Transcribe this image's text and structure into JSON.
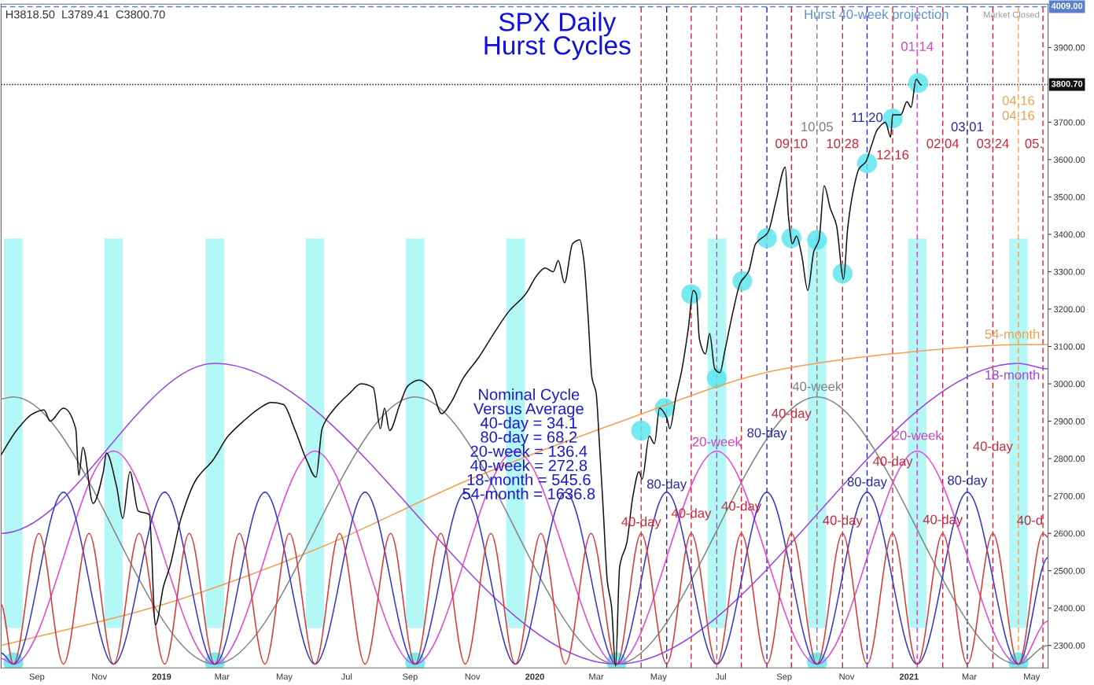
{
  "chart_data": {
    "type": "line",
    "title": "SPX Daily\nHurst Cycles",
    "xlim": [
      "2018-07-28",
      "2021-05-17"
    ],
    "ylim": [
      2240,
      4016
    ],
    "xticks": [
      {
        "value": "2018-09-01",
        "label": "Sep"
      },
      {
        "value": "2018-11-01",
        "label": "Nov"
      },
      {
        "value": "2019-01-01",
        "label": "2019"
      },
      {
        "value": "2019-03-01",
        "label": "Mar"
      },
      {
        "value": "2019-05-01",
        "label": "May"
      },
      {
        "value": "2019-07-01",
        "label": "Jul"
      },
      {
        "value": "2019-09-01",
        "label": "Sep"
      },
      {
        "value": "2019-11-01",
        "label": "Nov"
      },
      {
        "value": "2020-01-01",
        "label": "2020"
      },
      {
        "value": "2020-03-01",
        "label": "Mar"
      },
      {
        "value": "2020-05-01",
        "label": "May"
      },
      {
        "value": "2020-07-01",
        "label": "Jul"
      },
      {
        "value": "2020-09-01",
        "label": "Sep"
      },
      {
        "value": "2020-11-01",
        "label": "Nov"
      },
      {
        "value": "2021-01-01",
        "label": "2021"
      },
      {
        "value": "2021-03-01",
        "label": "Mar"
      },
      {
        "value": "2021-05-01",
        "label": "May"
      }
    ],
    "yticks": [
      {
        "value": 2300,
        "label": "2300.00"
      },
      {
        "value": 2400,
        "label": "2400.00"
      },
      {
        "value": 2500,
        "label": "2500.00"
      },
      {
        "value": 2600,
        "label": "2600.00"
      },
      {
        "value": 2700,
        "label": "2700.00"
      },
      {
        "value": 2800,
        "label": "2800.00"
      },
      {
        "value": 2900,
        "label": "2900.00"
      },
      {
        "value": 3000,
        "label": "3000.00"
      },
      {
        "value": 3100,
        "label": "3100.00"
      },
      {
        "value": 3200,
        "label": "3200.00"
      },
      {
        "value": 3300,
        "label": "3300.00"
      },
      {
        "value": 3400,
        "label": "3400.00"
      },
      {
        "value": 3500,
        "label": "3500.00"
      },
      {
        "value": 3600,
        "label": "3600.00"
      },
      {
        "value": 3700,
        "label": "3700.00"
      },
      {
        "value": 3900,
        "label": "3900.00"
      }
    ],
    "bands": [
      {
        "axis": "x",
        "from": "2018-07-31",
        "to": "2018-08-18",
        "color": "#b3f7f7"
      },
      {
        "axis": "x",
        "from": "2018-11-06",
        "to": "2018-11-24",
        "color": "#b3f7f7"
      },
      {
        "axis": "x",
        "from": "2019-02-13",
        "to": "2019-03-03",
        "color": "#b3f7f7"
      },
      {
        "axis": "x",
        "from": "2019-05-22",
        "to": "2019-06-09",
        "color": "#b3f7f7"
      },
      {
        "axis": "x",
        "from": "2019-08-28",
        "to": "2019-09-15",
        "color": "#b3f7f7"
      },
      {
        "axis": "x",
        "from": "2019-12-04",
        "to": "2019-12-22",
        "color": "#b3f7f7"
      },
      {
        "axis": "x",
        "from": "2020-06-18",
        "to": "2020-07-06",
        "color": "#b3f7f7"
      },
      {
        "axis": "x",
        "from": "2020-09-24",
        "to": "2020-10-12",
        "color": "#b3f7f7"
      },
      {
        "axis": "x",
        "from": "2020-12-31",
        "to": "2021-01-18",
        "color": "#b3f7f7"
      },
      {
        "axis": "x",
        "from": "2021-04-09",
        "to": "2021-04-27",
        "color": "#b3f7f7"
      }
    ],
    "series": [
      {
        "color": "#f0a050",
        "x": [
          "2018-07-28",
          "2018-12-28",
          "2019-05-30",
          "2019-10-30",
          "2020-03-16",
          "2020-08-31",
          "2021-01-01",
          "2021-04-18",
          "2021-05-17"
        ],
        "values": [
          2300,
          2405,
          2555,
          2745,
          2890,
          3040,
          3085,
          3105,
          3105
        ]
      },
      {
        "color": "#9b45e0",
        "x": [
          "2018-07-28",
          "2019-02-22",
          "2020-03-21",
          "2021-04-18",
          "2021-05-17"
        ],
        "values": [
          2600,
          3055,
          2250,
          3055,
          3040
        ]
      },
      {
        "color": "#858585",
        "x": [
          "2018-07-28",
          "2018-08-09",
          "2019-02-22",
          "2019-09-06",
          "2020-03-21",
          "2020-10-03",
          "2021-04-18",
          "2021-05-17"
        ],
        "values": [
          2960,
          2965,
          2250,
          2965,
          2250,
          2965,
          2250,
          2300
        ]
      },
      {
        "color": "#e845d8",
        "x": [
          "2018-07-28",
          "2018-08-09",
          "2018-11-15",
          "2019-02-22",
          "2019-05-31",
          "2019-09-06",
          "2019-12-13",
          "2020-03-21",
          "2020-06-27",
          "2020-10-03",
          "2021-01-09",
          "2021-04-18",
          "2021-05-17"
        ],
        "values": [
          2265,
          2250,
          2820,
          2250,
          2820,
          2250,
          2820,
          2250,
          2820,
          2250,
          2820,
          2250,
          2365
        ]
      },
      {
        "color": "#3535d0",
        "x": [
          "2018-07-28",
          "2018-08-09",
          "2018-09-27",
          "2018-11-15",
          "2019-01-04",
          "2019-02-22",
          "2019-04-12",
          "2019-05-31",
          "2019-07-19",
          "2019-09-06",
          "2019-10-25",
          "2019-12-13",
          "2020-01-31",
          "2020-03-21",
          "2020-05-09",
          "2020-06-27",
          "2020-08-15",
          "2020-10-03",
          "2020-11-21",
          "2021-01-09",
          "2021-02-27",
          "2021-04-18",
          "2021-05-17"
        ],
        "values": [
          2280,
          2250,
          2710,
          2250,
          2710,
          2250,
          2710,
          2250,
          2710,
          2250,
          2710,
          2250,
          2710,
          2250,
          2710,
          2250,
          2710,
          2250,
          2710,
          2250,
          2710,
          2250,
          2535
        ]
      },
      {
        "color": "#dc3535",
        "x": [
          "2018-07-28",
          "2018-08-09",
          "2018-09-03",
          "2018-09-27",
          "2018-10-22",
          "2018-11-15",
          "2018-12-10",
          "2019-01-04",
          "2019-01-28",
          "2019-02-22",
          "2019-03-18",
          "2019-04-12",
          "2019-05-06",
          "2019-05-31",
          "2019-06-24",
          "2019-07-19",
          "2019-08-13",
          "2019-09-06",
          "2019-10-01",
          "2019-10-25",
          "2019-11-19",
          "2019-12-13",
          "2020-01-07",
          "2020-01-31",
          "2020-02-25",
          "2020-03-21",
          "2020-04-14",
          "2020-05-09",
          "2020-06-02",
          "2020-06-27",
          "2020-07-21",
          "2020-08-15",
          "2020-09-08",
          "2020-10-03",
          "2020-10-28",
          "2020-11-21",
          "2020-12-16",
          "2021-01-09",
          "2021-02-03",
          "2021-02-27",
          "2021-03-24",
          "2021-04-18",
          "2021-05-12",
          "2021-05-17"
        ],
        "values": [
          2410,
          2250,
          2600,
          2250,
          2600,
          2250,
          2600,
          2250,
          2600,
          2250,
          2600,
          2250,
          2600,
          2250,
          2600,
          2250,
          2600,
          2250,
          2600,
          2250,
          2600,
          2250,
          2600,
          2250,
          2600,
          2250,
          2600,
          2250,
          2600,
          2250,
          2600,
          2250,
          2600,
          2250,
          2600,
          2250,
          2600,
          2250,
          2600,
          2250,
          2600,
          2250,
          2600,
          2590
        ]
      },
      {
        "type": "scatter",
        "marker": "circle",
        "color": "#5ee6ee",
        "x": [
          "2018-08-09",
          "2019-02-22",
          "2019-09-06",
          "2020-03-21",
          "2020-04-14",
          "2020-05-07",
          "2020-06-02",
          "2020-06-27",
          "2020-07-22",
          "2020-08-15",
          "2020-09-08",
          "2020-10-03",
          "2020-10-03",
          "2020-10-28",
          "2020-11-21",
          "2020-12-16",
          "2021-01-10",
          "2021-04-18"
        ],
        "values": [
          2255,
          2255,
          2255,
          2255,
          2875,
          2935,
          3240,
          3015,
          3275,
          3390,
          3390,
          3385,
          2255,
          3295,
          3590,
          3710,
          3805,
          2255
        ]
      },
      {
        "color": "#111111",
        "x": [
          "2018-07-28",
          "2018-08-12",
          "2018-08-28",
          "2018-09-08",
          "2018-09-14",
          "2018-09-27",
          "2018-10-09",
          "2018-10-12",
          "2018-10-16",
          "2018-10-26",
          "2018-11-05",
          "2018-11-08",
          "2018-11-18",
          "2018-11-24",
          "2018-12-01",
          "2018-12-09",
          "2018-12-20",
          "2018-12-26",
          "2019-01-03",
          "2019-01-09",
          "2019-01-20",
          "2019-02-04",
          "2019-02-20",
          "2019-03-07",
          "2019-03-22",
          "2019-04-07",
          "2019-04-18",
          "2019-04-30",
          "2019-05-11",
          "2019-05-23",
          "2019-06-01",
          "2019-06-07",
          "2019-06-18",
          "2019-07-04",
          "2019-07-15",
          "2019-07-27",
          "2019-08-03",
          "2019-08-07",
          "2019-08-12",
          "2019-08-22",
          "2019-08-30",
          "2019-09-10",
          "2019-09-22",
          "2019-10-02",
          "2019-10-11",
          "2019-10-23",
          "2019-11-07",
          "2019-11-22",
          "2019-12-07",
          "2019-12-23",
          "2020-01-03",
          "2020-01-11",
          "2020-01-19",
          "2020-01-24",
          "2020-01-30",
          "2020-02-07",
          "2020-02-14",
          "2020-02-18",
          "2020-02-22",
          "2020-02-26",
          "2020-03-01",
          "2020-03-04",
          "2020-03-08",
          "2020-03-12",
          "2020-03-16",
          "2020-03-20",
          "2020-03-24",
          "2020-03-31",
          "2020-04-06",
          "2020-04-12",
          "2020-04-15",
          "2020-04-22",
          "2020-04-27",
          "2020-05-02",
          "2020-05-09",
          "2020-05-12",
          "2020-05-18",
          "2020-05-24",
          "2020-05-30",
          "2020-06-04",
          "2020-06-07",
          "2020-06-10",
          "2020-06-16",
          "2020-06-20",
          "2020-06-25",
          "2020-06-30",
          "2020-07-05",
          "2020-07-13",
          "2020-07-20",
          "2020-07-28",
          "2020-08-04",
          "2020-08-16",
          "2020-08-24",
          "2020-09-02",
          "2020-09-05",
          "2020-09-09",
          "2020-09-13",
          "2020-09-18",
          "2020-09-24",
          "2020-09-30",
          "2020-10-05",
          "2020-10-10",
          "2020-10-16",
          "2020-10-22",
          "2020-10-29",
          "2020-11-02",
          "2020-11-07",
          "2020-11-13",
          "2020-11-20",
          "2020-11-25",
          "2020-12-01",
          "2020-12-09",
          "2020-12-14",
          "2020-12-16",
          "2020-12-24",
          "2020-12-30",
          "2021-01-03",
          "2021-01-08",
          "2021-01-13"
        ],
        "values": [
          2810,
          2875,
          2920,
          2930,
          2900,
          2935,
          2880,
          2755,
          2830,
          2680,
          2765,
          2815,
          2725,
          2640,
          2765,
          2660,
          2650,
          2355,
          2460,
          2510,
          2640,
          2745,
          2795,
          2860,
          2900,
          2935,
          2950,
          2945,
          2880,
          2795,
          2750,
          2880,
          2930,
          2975,
          3000,
          2990,
          2880,
          2935,
          2875,
          2945,
          2995,
          3010,
          2985,
          2920,
          2950,
          3015,
          3070,
          3135,
          3195,
          3240,
          3290,
          3310,
          3300,
          3330,
          3270,
          3375,
          3385,
          3330,
          3185,
          3015,
          2975,
          2850,
          2660,
          2470,
          2405,
          2245,
          2510,
          2575,
          2700,
          2765,
          2745,
          2860,
          2840,
          2935,
          2910,
          2880,
          2965,
          3040,
          3145,
          3250,
          3240,
          3120,
          3080,
          3135,
          3040,
          3030,
          3090,
          3195,
          3270,
          3300,
          3375,
          3405,
          3490,
          3580,
          3450,
          3375,
          3395,
          3345,
          3250,
          3355,
          3385,
          3530,
          3470,
          3425,
          3280,
          3415,
          3510,
          3575,
          3595,
          3635,
          3680,
          3700,
          3660,
          3720,
          3720,
          3755,
          3740,
          3815,
          3800
        ]
      }
    ],
    "ref_lines": [
      {
        "axis": "y",
        "value": 4009,
        "label": "4009.00",
        "color": "#5b7fc8",
        "line_style": "dashed"
      },
      {
        "axis": "y",
        "value": 3800.7,
        "label": "3800.70",
        "color": "#111111",
        "line_style": "dotted"
      },
      {
        "axis": "x",
        "value": "2020-04-14",
        "color": "#c8283c",
        "line_style": "dashed"
      },
      {
        "axis": "x",
        "value": "2020-05-09",
        "color": "#2a2aa0",
        "line_style": "dashed"
      },
      {
        "axis": "x",
        "value": "2020-06-02",
        "color": "#c8283c",
        "line_style": "dashed"
      },
      {
        "axis": "x",
        "value": "2020-06-27",
        "color": "#d040c0",
        "line_style": "dashed"
      },
      {
        "axis": "x",
        "value": "2020-07-21",
        "color": "#c8283c",
        "line_style": "dashed"
      },
      {
        "axis": "x",
        "value": "2020-08-15",
        "color": "#2a2aa0",
        "line_style": "dashed"
      },
      {
        "axis": "x",
        "value": "2020-09-08",
        "color": "#c8283c",
        "line_style": "dashed"
      },
      {
        "axis": "x",
        "value": "2020-10-03",
        "color": "#808080",
        "line_style": "dashed"
      },
      {
        "axis": "x",
        "value": "2020-10-28",
        "color": "#c8283c",
        "line_style": "dashed"
      },
      {
        "axis": "x",
        "value": "2020-11-21",
        "color": "#2a2aa0",
        "line_style": "dashed"
      },
      {
        "axis": "x",
        "value": "2020-12-16",
        "color": "#c8283c",
        "line_style": "dashed"
      },
      {
        "axis": "x",
        "value": "2021-01-09",
        "color": "#d040c0",
        "line_style": "dashed"
      },
      {
        "axis": "x",
        "value": "2021-02-03",
        "color": "#c8283c",
        "line_style": "dashed"
      },
      {
        "axis": "x",
        "value": "2021-02-27",
        "color": "#2a2aa0",
        "line_style": "dashed"
      },
      {
        "axis": "x",
        "value": "2021-03-24",
        "color": "#c8283c",
        "line_style": "dashed"
      },
      {
        "axis": "x",
        "value": "2021-04-18",
        "color": "#f0a050",
        "line_style": "dashed"
      },
      {
        "axis": "x",
        "value": "2021-05-12",
        "color": "#c8283c",
        "line_style": "dashed"
      }
    ],
    "annotations": [
      "H3818.50  L3789.41  C3800.70",
      "Hurst 40-week projection",
      "Market Closed",
      "Nominal Cycle\nVersus Average\n40-day = 34.1\n80-day = 68.2\n20-week = 136.4\n40-week = 272.8\n18-month = 545.6\n54-month = 1636.8",
      {
        "text": "09.10",
        "x": "2020-09-08",
        "y": 3640
      },
      {
        "text": "10.05",
        "x": "2020-10-03",
        "y": 3685
      },
      {
        "text": "10.28",
        "x": "2020-10-28",
        "y": 3640
      },
      {
        "text": "11.20",
        "x": "2020-11-21",
        "y": 3710
      },
      {
        "text": "12.16",
        "x": "2020-12-16",
        "y": 3610
      },
      {
        "text": "01.14",
        "x": "2021-01-09",
        "y": 3900
      },
      {
        "text": "02.04",
        "x": "2021-02-03",
        "y": 3640
      },
      {
        "text": "03.01",
        "x": "2021-02-27",
        "y": 3685
      },
      {
        "text": "03.24",
        "x": "2021-03-24",
        "y": 3640
      },
      {
        "text": "04.16",
        "x": "2021-04-18",
        "y": 3755
      },
      {
        "text": "04.16",
        "x": "2021-04-18",
        "y": 3715
      },
      {
        "text": "05.",
        "x": "2021-05-12",
        "y": 3640
      },
      {
        "text": "40-day",
        "x": "2020-04-14",
        "y": 2628
      },
      {
        "text": "80-day",
        "x": "2020-05-09",
        "y": 2729
      },
      {
        "text": "40-day",
        "x": "2020-06-02",
        "y": 2651
      },
      {
        "text": "20-week",
        "x": "2020-06-27",
        "y": 2842
      },
      {
        "text": "40-day",
        "x": "2020-07-21",
        "y": 2670
      },
      {
        "text": "80-day",
        "x": "2020-08-15",
        "y": 2866
      },
      {
        "text": "40-day",
        "x": "2020-09-08",
        "y": 2918
      },
      {
        "text": "40-week",
        "x": "2020-10-03",
        "y": 2990
      },
      {
        "text": "40-day",
        "x": "2020-10-28",
        "y": 2632
      },
      {
        "text": "80-day",
        "x": "2020-11-21",
        "y": 2735
      },
      {
        "text": "40-day",
        "x": "2020-12-16",
        "y": 2790
      },
      {
        "text": "20-week",
        "x": "2021-01-09",
        "y": 2859
      },
      {
        "text": "40-day",
        "x": "2021-02-03",
        "y": 2634
      },
      {
        "text": "80-day",
        "x": "2021-02-27",
        "y": 2739
      },
      {
        "text": "40-day",
        "x": "2021-03-24",
        "y": 2830
      },
      {
        "text": "40-d",
        "x": "2021-05-12",
        "y": 2632
      },
      {
        "text": "54-month",
        "x": "2021-04-12",
        "y": 3130
      },
      {
        "text": "18-month",
        "x": "2021-04-12",
        "y": 3021
      }
    ]
  }
}
